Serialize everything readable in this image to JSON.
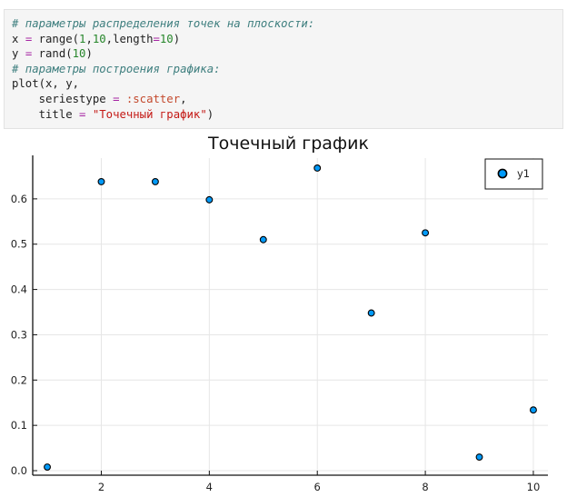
{
  "code": {
    "lines": [
      [
        {
          "t": "# параметры распределения точек на плоскости:",
          "c": "comment"
        }
      ],
      [
        {
          "t": "x ",
          "c": "plain"
        },
        {
          "t": "=",
          "c": "op"
        },
        {
          "t": " range(",
          "c": "plain"
        },
        {
          "t": "1",
          "c": "num"
        },
        {
          "t": ",",
          "c": "plain"
        },
        {
          "t": "10",
          "c": "num"
        },
        {
          "t": ",length",
          "c": "plain"
        },
        {
          "t": "=",
          "c": "op"
        },
        {
          "t": "10",
          "c": "num"
        },
        {
          "t": ")",
          "c": "plain"
        }
      ],
      [
        {
          "t": "y ",
          "c": "plain"
        },
        {
          "t": "=",
          "c": "op"
        },
        {
          "t": " rand(",
          "c": "plain"
        },
        {
          "t": "10",
          "c": "num"
        },
        {
          "t": ")",
          "c": "plain"
        }
      ],
      [
        {
          "t": "# параметры построения графика:",
          "c": "comment"
        }
      ],
      [
        {
          "t": "plot(x, y,",
          "c": "plain"
        }
      ],
      [
        {
          "t": "    seriestype ",
          "c": "plain"
        },
        {
          "t": "=",
          "c": "op"
        },
        {
          "t": " ",
          "c": "plain"
        },
        {
          "t": ":scatter",
          "c": "sym"
        },
        {
          "t": ",",
          "c": "plain"
        }
      ],
      [
        {
          "t": "    title ",
          "c": "plain"
        },
        {
          "t": "=",
          "c": "op"
        },
        {
          "t": " ",
          "c": "plain"
        },
        {
          "t": "\"Точечный график\"",
          "c": "str"
        },
        {
          "t": ")",
          "c": "plain"
        }
      ]
    ]
  },
  "chart_data": {
    "type": "scatter",
    "title": "Точечный график",
    "xlabel": "",
    "ylabel": "",
    "xlim": [
      0.73,
      10.27
    ],
    "ylim": [
      -0.01,
      0.69
    ],
    "xticks": [
      2,
      4,
      6,
      8,
      10
    ],
    "yticks": [
      0.0,
      0.1,
      0.2,
      0.3,
      0.4,
      0.5,
      0.6
    ],
    "ytick_labels": [
      "0.0",
      "0.1",
      "0.2",
      "0.3",
      "0.4",
      "0.5",
      "0.6"
    ],
    "grid": true,
    "legend_position": "top-right",
    "series": [
      {
        "name": "y1",
        "color": "#009af9",
        "x": [
          1,
          2,
          3,
          4,
          5,
          6,
          7,
          8,
          9,
          10
        ],
        "y": [
          0.008,
          0.638,
          0.638,
          0.598,
          0.51,
          0.668,
          0.348,
          0.525,
          0.03,
          0.134
        ]
      }
    ]
  }
}
